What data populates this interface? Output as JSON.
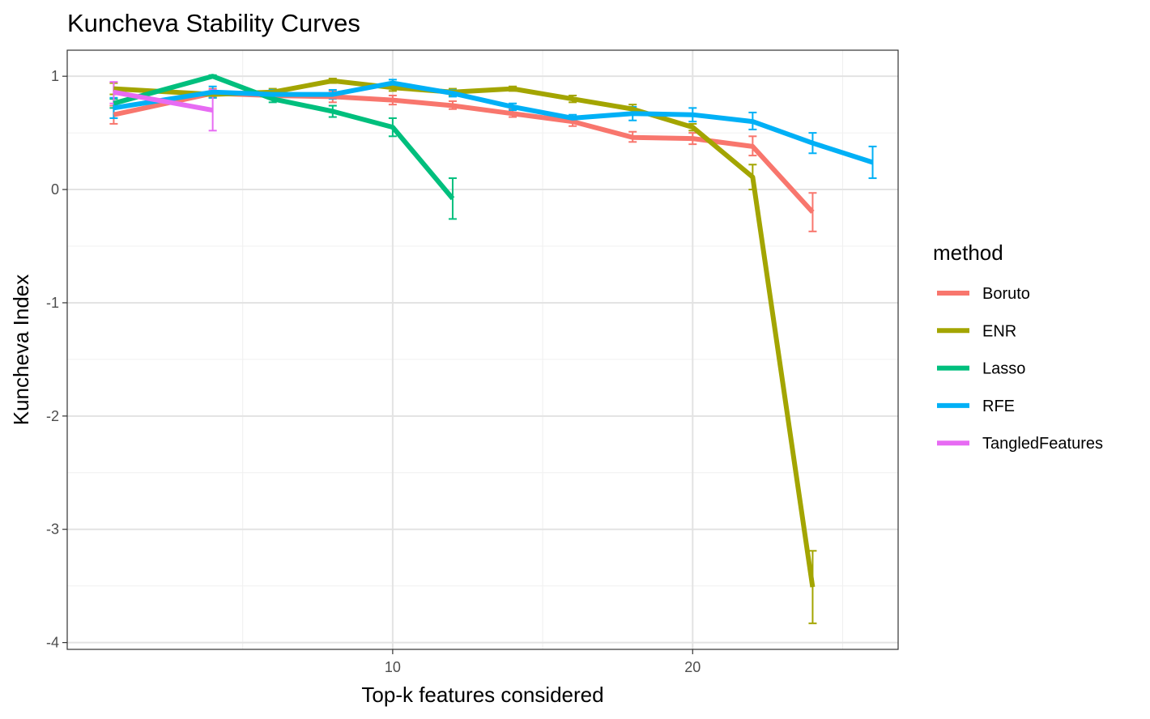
{
  "chart_data": {
    "type": "line",
    "title": "Kuncheva Stability Curves",
    "xlabel": "Top-k features considered",
    "ylabel": "Kuncheva Index",
    "xlim": [
      -0.85,
      26.85
    ],
    "ylim": [
      -4.06,
      1.23
    ],
    "x_ticks": [
      10,
      20
    ],
    "x_minor_ticks": [
      5,
      15,
      25
    ],
    "y_ticks": [
      1,
      0,
      -1,
      -2,
      -3,
      -4
    ],
    "y_tick_labels": [
      "1",
      "0",
      "-1",
      "-2",
      "-3",
      "-4"
    ],
    "grid": true,
    "legend_title": "method",
    "legend_position": "right",
    "series": [
      {
        "name": "Boruto",
        "color": "#F8766D",
        "points": [
          {
            "x": 0.7,
            "y": 0.66,
            "lo": 0.58,
            "hi": 0.74
          },
          {
            "x": 4,
            "y": 0.85,
            "lo": 0.81,
            "hi": 0.89
          },
          {
            "x": 6,
            "y": 0.83,
            "lo": 0.8,
            "hi": 0.86
          },
          {
            "x": 8,
            "y": 0.82,
            "lo": 0.77,
            "hi": 0.87
          },
          {
            "x": 10,
            "y": 0.79,
            "lo": 0.75,
            "hi": 0.83
          },
          {
            "x": 12,
            "y": 0.74,
            "lo": 0.71,
            "hi": 0.78
          },
          {
            "x": 14,
            "y": 0.67,
            "lo": 0.64,
            "hi": 0.71
          },
          {
            "x": 16,
            "y": 0.6,
            "lo": 0.56,
            "hi": 0.64
          },
          {
            "x": 18,
            "y": 0.46,
            "lo": 0.42,
            "hi": 0.51
          },
          {
            "x": 20,
            "y": 0.45,
            "lo": 0.4,
            "hi": 0.5
          },
          {
            "x": 22,
            "y": 0.38,
            "lo": 0.3,
            "hi": 0.47
          },
          {
            "x": 24,
            "y": -0.2,
            "lo": -0.37,
            "hi": -0.03
          }
        ]
      },
      {
        "name": "ENR",
        "color": "#A3A500",
        "points": [
          {
            "x": 0.7,
            "y": 0.89,
            "lo": 0.84,
            "hi": 0.94
          },
          {
            "x": 4,
            "y": 0.84,
            "lo": 0.81,
            "hi": 0.87
          },
          {
            "x": 6,
            "y": 0.86,
            "lo": 0.83,
            "hi": 0.89
          },
          {
            "x": 8,
            "y": 0.96,
            "lo": 0.94,
            "hi": 0.98
          },
          {
            "x": 10,
            "y": 0.9,
            "lo": 0.87,
            "hi": 0.93
          },
          {
            "x": 12,
            "y": 0.86,
            "lo": 0.83,
            "hi": 0.89
          },
          {
            "x": 14,
            "y": 0.89,
            "lo": 0.87,
            "hi": 0.91
          },
          {
            "x": 16,
            "y": 0.8,
            "lo": 0.77,
            "hi": 0.83
          },
          {
            "x": 18,
            "y": 0.71,
            "lo": 0.67,
            "hi": 0.75
          },
          {
            "x": 20,
            "y": 0.55,
            "lo": 0.52,
            "hi": 0.58
          },
          {
            "x": 22,
            "y": 0.11,
            "lo": 0.0,
            "hi": 0.22
          },
          {
            "x": 24,
            "y": -3.51,
            "lo": -3.83,
            "hi": -3.19
          }
        ]
      },
      {
        "name": "Lasso",
        "color": "#00BF7D",
        "points": [
          {
            "x": 0.7,
            "y": 0.76,
            "lo": 0.72,
            "hi": 0.8
          },
          {
            "x": 4,
            "y": 1.0,
            "lo": 0.99,
            "hi": 1.01
          },
          {
            "x": 6,
            "y": 0.8,
            "lo": 0.77,
            "hi": 0.83
          },
          {
            "x": 8,
            "y": 0.69,
            "lo": 0.64,
            "hi": 0.74
          },
          {
            "x": 10,
            "y": 0.55,
            "lo": 0.47,
            "hi": 0.63
          },
          {
            "x": 12,
            "y": -0.08,
            "lo": -0.26,
            "hi": 0.1
          }
        ]
      },
      {
        "name": "RFE",
        "color": "#00B0F6",
        "points": [
          {
            "x": 0.7,
            "y": 0.72,
            "lo": 0.63,
            "hi": 0.81
          },
          {
            "x": 4,
            "y": 0.86,
            "lo": 0.81,
            "hi": 0.91
          },
          {
            "x": 6,
            "y": 0.84,
            "lo": 0.8,
            "hi": 0.88
          },
          {
            "x": 8,
            "y": 0.84,
            "lo": 0.8,
            "hi": 0.88
          },
          {
            "x": 10,
            "y": 0.94,
            "lo": 0.91,
            "hi": 0.97
          },
          {
            "x": 12,
            "y": 0.85,
            "lo": 0.82,
            "hi": 0.88
          },
          {
            "x": 14,
            "y": 0.73,
            "lo": 0.7,
            "hi": 0.76
          },
          {
            "x": 16,
            "y": 0.63,
            "lo": 0.6,
            "hi": 0.66
          },
          {
            "x": 18,
            "y": 0.67,
            "lo": 0.61,
            "hi": 0.73
          },
          {
            "x": 20,
            "y": 0.66,
            "lo": 0.6,
            "hi": 0.72
          },
          {
            "x": 22,
            "y": 0.6,
            "lo": 0.53,
            "hi": 0.68
          },
          {
            "x": 24,
            "y": 0.41,
            "lo": 0.32,
            "hi": 0.5
          },
          {
            "x": 26,
            "y": 0.24,
            "lo": 0.1,
            "hi": 0.38
          }
        ]
      },
      {
        "name": "TangledFeatures",
        "color": "#E76BF3",
        "points": [
          {
            "x": 0.7,
            "y": 0.86,
            "lo": 0.76,
            "hi": 0.95
          },
          {
            "x": 4,
            "y": 0.7,
            "lo": 0.52,
            "hi": 0.88
          }
        ]
      }
    ]
  }
}
